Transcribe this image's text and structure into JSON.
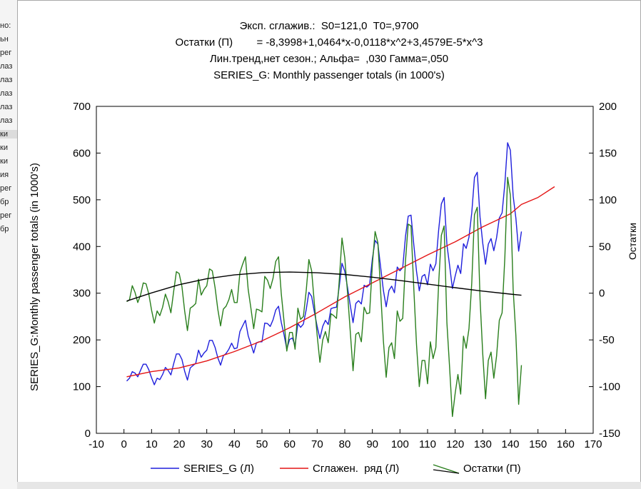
{
  "left_panel": {
    "items": [
      "но:",
      "ьн",
      "рег",
      "лаз",
      "лаз",
      "лаз",
      "лаз",
      "лаз",
      "ки",
      "ки",
      "ки",
      "ия",
      "рег",
      "бр",
      "рег",
      "бр"
    ],
    "selected_index": 8
  },
  "chart_data": {
    "type": "line",
    "title_lines": [
      "Эксп. сглажив.:  S0=121,0  T0=,9700",
      "Остатки (П)        = -8,3998+1,0464*x-0,0118*x^2+3,4579E-5*x^3",
      "Лин.тренд,нет сезон.; Альфа=  ,030 Гамма=,050",
      "SERIES_G: Monthly passenger totals (in 1000's)"
    ],
    "ylabel": "SERIES_G:Monthly passenger totals (in 1000's)",
    "ylabel_right": "Остатки",
    "x_range": [
      -10,
      170
    ],
    "y_left_range": [
      0,
      700
    ],
    "y_right_range": [
      -150,
      200
    ],
    "x_ticks": [
      -10,
      0,
      10,
      20,
      30,
      40,
      50,
      60,
      70,
      80,
      90,
      100,
      110,
      120,
      130,
      140,
      150,
      160,
      170
    ],
    "y_left_ticks": [
      0,
      100,
      200,
      300,
      400,
      500,
      600,
      700
    ],
    "y_right_ticks": [
      -150,
      -100,
      -50,
      0,
      50,
      100,
      150,
      200
    ],
    "legend": [
      {
        "label": "SERIES_G (Л)",
        "color": "#1f1fdc"
      },
      {
        "label": "Сглажен.  ряд (Л)",
        "color": "#e41414"
      },
      {
        "label": "Остатки (П)",
        "color": "#2a7f1d"
      }
    ],
    "series": [
      {
        "name": "SERIES_G (Л)",
        "axis": "left",
        "color": "#1f1fdc",
        "x_start": 1,
        "values": [
          112,
          118,
          132,
          129,
          121,
          135,
          148,
          148,
          136,
          119,
          104,
          118,
          115,
          126,
          141,
          135,
          125,
          149,
          170,
          170,
          158,
          133,
          114,
          140,
          145,
          150,
          178,
          163,
          172,
          178,
          199,
          199,
          184,
          162,
          146,
          166,
          171,
          180,
          193,
          181,
          183,
          218,
          230,
          242,
          209,
          191,
          172,
          194,
          196,
          196,
          236,
          235,
          229,
          243,
          264,
          272,
          237,
          211,
          180,
          201,
          204,
          188,
          235,
          227,
          234,
          264,
          302,
          293,
          259,
          229,
          203,
          229,
          242,
          233,
          267,
          269,
          270,
          315,
          364,
          347,
          312,
          274,
          237,
          278,
          284,
          277,
          317,
          313,
          318,
          374,
          413,
          405,
          355,
          306,
          271,
          306,
          315,
          301,
          356,
          348,
          355,
          422,
          465,
          467,
          404,
          347,
          305,
          336,
          340,
          318,
          362,
          348,
          363,
          435,
          491,
          505,
          404,
          359,
          310,
          337,
          360,
          342,
          406,
          396,
          420,
          472,
          548,
          559,
          463,
          407,
          362,
          405,
          417,
          391,
          419,
          461,
          472,
          535,
          622,
          606,
          508,
          461,
          390,
          432
        ]
      },
      {
        "name": "Сглажен.  ряд (Л)",
        "axis": "left",
        "color": "#e41414",
        "x": [
          1,
          10,
          20,
          30,
          40,
          50,
          60,
          70,
          80,
          90,
          100,
          110,
          120,
          130,
          140,
          144,
          150,
          156
        ],
        "values": [
          121,
          132,
          140,
          155,
          175,
          198,
          226,
          258,
          292,
          322,
          352,
          382,
          410,
          442,
          470,
          490,
          505,
          528
        ]
      },
      {
        "name": "Остатки (П)",
        "axis": "right",
        "color": "#2a7f1d",
        "x_start": 1,
        "values": [
          -9,
          -7,
          8,
          1,
          -10,
          -2,
          11,
          10,
          -1,
          -18,
          -32,
          -19,
          -24,
          -15,
          -1,
          -9,
          -21,
          2,
          23,
          21,
          7,
          -19,
          -40,
          -16,
          -14,
          -11,
          15,
          -2,
          4,
          8,
          26,
          24,
          6,
          -17,
          -35,
          -17,
          -14,
          -7,
          4,
          -10,
          -10,
          22,
          31,
          39,
          4,
          -16,
          -38,
          -17,
          -18,
          -20,
          18,
          14,
          5,
          16,
          34,
          39,
          -1,
          -30,
          -62,
          -42,
          -42,
          -60,
          -16,
          -28,
          -25,
          2,
          36,
          24,
          -12,
          -45,
          -74,
          -50,
          -41,
          -53,
          -22,
          -24,
          -27,
          14,
          59,
          38,
          0,
          -41,
          -83,
          -44,
          -42,
          -52,
          -15,
          -22,
          -21,
          31,
          66,
          54,
          1,
          -51,
          -90,
          -58,
          -53,
          -70,
          -19,
          -30,
          -27,
          35,
          74,
          72,
          5,
          -55,
          -100,
          -72,
          -72,
          -97,
          -52,
          -70,
          -58,
          10,
          62,
          72,
          -32,
          -80,
          -132,
          -107,
          -87,
          -108,
          -46,
          -59,
          -38,
          11,
          84,
          92,
          -6,
          -65,
          -113,
          -72,
          -63,
          -91,
          -67,
          -29,
          -21,
          39,
          124,
          105,
          4,
          -45,
          -119,
          -77
        ]
      },
      {
        "name": "",
        "axis": "right",
        "color": "#000000",
        "x": [
          1,
          10,
          20,
          30,
          40,
          50,
          60,
          70,
          80,
          90,
          100,
          110,
          120,
          130,
          140,
          144
        ],
        "values": [
          -8.4,
          0.3,
          9.1,
          15.5,
          19.6,
          22.0,
          22.6,
          21.9,
          20.0,
          17.1,
          13.6,
          9.8,
          5.9,
          2.2,
          -1.0,
          -2.2
        ]
      }
    ]
  }
}
